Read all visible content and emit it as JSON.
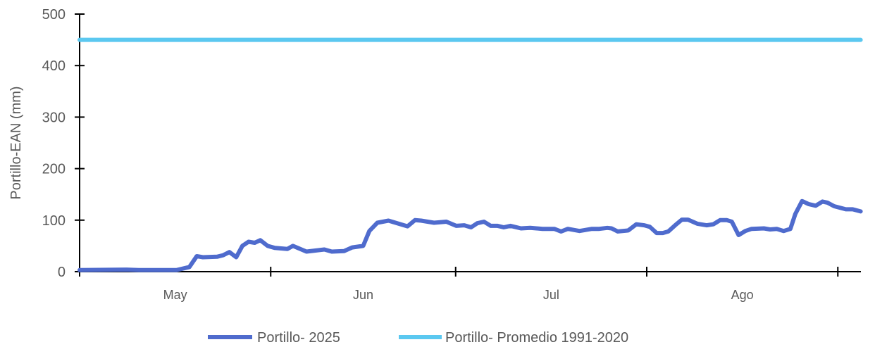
{
  "chart_data": {
    "type": "line",
    "title": "",
    "xlabel": "",
    "ylabel": "Portillo-EAN (mm)",
    "ylim": [
      0,
      500
    ],
    "yticks": [
      "0",
      "100",
      "200",
      "300",
      "400",
      "500"
    ],
    "xlim_days": [
      0,
      127
    ],
    "month_labels": [
      "May",
      "Jun",
      "Jul",
      "Ago"
    ],
    "x_unit": "days since May 1",
    "legend_position": "bottom",
    "series": [
      {
        "name": "Portillo- 2025",
        "color": "#4F6BCD",
        "points": [
          [
            0,
            3
          ],
          [
            7.6,
            4
          ],
          [
            9.6,
            3
          ],
          [
            15.7,
            3
          ],
          [
            17.8,
            9
          ],
          [
            19,
            30
          ],
          [
            20,
            28
          ],
          [
            22.3,
            29
          ],
          [
            23.3,
            32
          ],
          [
            24.3,
            38
          ],
          [
            25.4,
            28
          ],
          [
            26.4,
            50
          ],
          [
            27.4,
            58
          ],
          [
            28.4,
            56
          ],
          [
            29.3,
            61
          ],
          [
            30.5,
            50
          ],
          [
            31.7,
            46
          ],
          [
            33.7,
            44
          ],
          [
            34.6,
            50
          ],
          [
            36.8,
            39
          ],
          [
            39.7,
            43
          ],
          [
            40.9,
            39
          ],
          [
            42.9,
            40
          ],
          [
            44.2,
            47
          ],
          [
            46,
            50
          ],
          [
            47,
            79
          ],
          [
            48.3,
            95
          ],
          [
            50.1,
            99
          ],
          [
            53.2,
            88
          ],
          [
            54.4,
            100
          ],
          [
            55.4,
            99
          ],
          [
            57.5,
            95
          ],
          [
            59.5,
            97
          ],
          [
            61.1,
            89
          ],
          [
            62.4,
            90
          ],
          [
            63.5,
            86
          ],
          [
            64.5,
            94
          ],
          [
            65.6,
            97
          ],
          [
            66.7,
            89
          ],
          [
            67.8,
            89
          ],
          [
            68.8,
            86
          ],
          [
            69.9,
            89
          ],
          [
            71.6,
            84
          ],
          [
            73.1,
            85
          ],
          [
            75.1,
            83
          ],
          [
            77,
            83
          ],
          [
            78.1,
            78
          ],
          [
            79.2,
            83
          ],
          [
            81.1,
            79
          ],
          [
            83.1,
            83
          ],
          [
            84.3,
            83
          ],
          [
            85.6,
            85
          ],
          [
            86.3,
            84
          ],
          [
            87.3,
            78
          ],
          [
            89,
            80
          ],
          [
            90.3,
            92
          ],
          [
            91.6,
            90
          ],
          [
            92.5,
            87
          ],
          [
            93.6,
            75
          ],
          [
            94.6,
            75
          ],
          [
            95.5,
            78
          ],
          [
            96.6,
            90
          ],
          [
            97.7,
            101
          ],
          [
            98.7,
            101
          ],
          [
            100.2,
            93
          ],
          [
            101.7,
            90
          ],
          [
            102.8,
            92
          ],
          [
            103.9,
            100
          ],
          [
            105,
            100
          ],
          [
            105.8,
            97
          ],
          [
            106.9,
            71
          ],
          [
            108,
            79
          ],
          [
            109,
            83
          ],
          [
            111,
            84
          ],
          [
            112,
            82
          ],
          [
            113.1,
            83
          ],
          [
            114.2,
            79
          ],
          [
            115.3,
            83
          ],
          [
            116.1,
            112
          ],
          [
            117.2,
            137
          ],
          [
            118.3,
            131
          ],
          [
            119.4,
            128
          ],
          [
            120.5,
            136
          ],
          [
            121.3,
            134
          ],
          [
            122.4,
            127
          ],
          [
            124.3,
            121
          ],
          [
            125.4,
            121
          ],
          [
            126.7,
            117
          ]
        ]
      },
      {
        "name": "Portillo- Promedio 1991-2020",
        "color": "#5BC8F0",
        "points": [
          [
            0,
            450
          ],
          [
            126.7,
            450
          ]
        ]
      }
    ]
  }
}
